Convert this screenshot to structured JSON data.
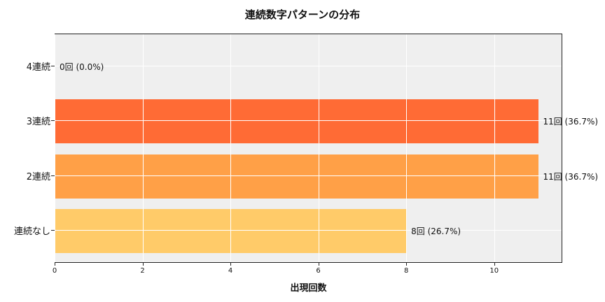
{
  "title": "連続数字パターンの分布",
  "xlabel": "出現回数",
  "ylabel": "",
  "x_ticks": [
    "0",
    "2",
    "4",
    "6",
    "8",
    "10"
  ],
  "categories": [
    "4連続",
    "3連続",
    "2連続",
    "連続なし"
  ],
  "bars": [
    {
      "label": "4連続",
      "value": 0,
      "annotation": "0回 (0.0%)",
      "color": "#ff5a1f"
    },
    {
      "label": "3連続",
      "value": 11,
      "annotation": "11回 (36.7%)",
      "color": "#ff6b35"
    },
    {
      "label": "2連続",
      "value": 11,
      "annotation": "11回 (36.7%)",
      "color": "#ffa047"
    },
    {
      "label": "連続なし",
      "value": 8,
      "annotation": "8回 (26.7%)",
      "color": "#ffcb69"
    }
  ],
  "chart_data": {
    "type": "bar",
    "orientation": "horizontal",
    "title": "連続数字パターンの分布",
    "xlabel": "出現回数",
    "ylabel": "",
    "categories": [
      "4連続",
      "3連続",
      "2連続",
      "連続なし"
    ],
    "values": [
      0,
      11,
      11,
      8
    ],
    "percentages": [
      0.0,
      36.7,
      36.7,
      26.7
    ],
    "data_labels": [
      "0回 (0.0%)",
      "11回 (36.7%)",
      "11回 (36.7%)",
      "8回 (26.7%)"
    ],
    "colors": [
      "#ff5a1f",
      "#ff6b35",
      "#ffa047",
      "#ffcb69"
    ],
    "xlim": [
      0,
      11.55
    ],
    "x_ticks": [
      0,
      2,
      4,
      6,
      8,
      10
    ],
    "grid": true,
    "legend": null,
    "background": "#efefef"
  }
}
